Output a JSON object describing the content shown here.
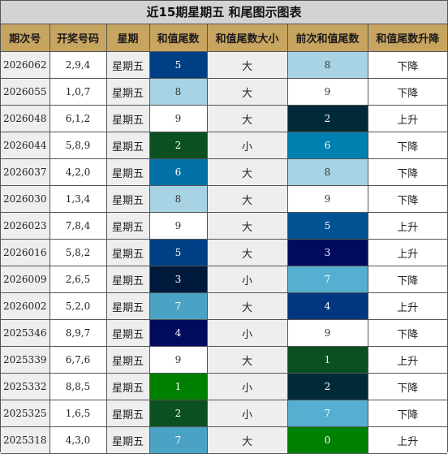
{
  "title": "近15期星期五 和尾图示图表",
  "headers": [
    "期次号",
    "开奖号码",
    "星期",
    "和值尾数",
    "和值尾数大小",
    "前次和值尾数",
    "和值尾数升降"
  ],
  "digit_colors": {
    "0": "#008000",
    "1": "#008000",
    "2": "#0a5020",
    "3": "#001a3d",
    "4": "#020a5e",
    "5": "#003f86",
    "6": "#0371a8",
    "7": "#4aa3c4",
    "8": "#a7d3e4",
    "9": "#ffffff"
  },
  "prev_digit_colors": {
    "0": "#008000",
    "1": "#0a5020",
    "2": "#002a38",
    "3": "#020a5e",
    "4": "#013680",
    "5": "#005293",
    "6": "#0080b0",
    "7": "#56aed0",
    "8": "#a7d3e4",
    "9": "#ffffff"
  },
  "rows": [
    {
      "issue": "2026062",
      "numbers": "2,9,4",
      "weekday": "星期五",
      "sum_tail": "5",
      "size": "大",
      "prev_tail": "8",
      "trend": "下降"
    },
    {
      "issue": "2026055",
      "numbers": "1,0,7",
      "weekday": "星期五",
      "sum_tail": "8",
      "size": "大",
      "prev_tail": "9",
      "trend": "下降"
    },
    {
      "issue": "2026048",
      "numbers": "6,1,2",
      "weekday": "星期五",
      "sum_tail": "9",
      "size": "大",
      "prev_tail": "2",
      "trend": "上升"
    },
    {
      "issue": "2026044",
      "numbers": "5,8,9",
      "weekday": "星期五",
      "sum_tail": "2",
      "size": "小",
      "prev_tail": "6",
      "trend": "下降"
    },
    {
      "issue": "2026037",
      "numbers": "4,2,0",
      "weekday": "星期五",
      "sum_tail": "6",
      "size": "大",
      "prev_tail": "8",
      "trend": "下降"
    },
    {
      "issue": "2026030",
      "numbers": "1,3,4",
      "weekday": "星期五",
      "sum_tail": "8",
      "size": "大",
      "prev_tail": "9",
      "trend": "下降"
    },
    {
      "issue": "2026023",
      "numbers": "7,8,4",
      "weekday": "星期五",
      "sum_tail": "9",
      "size": "大",
      "prev_tail": "5",
      "trend": "上升"
    },
    {
      "issue": "2026016",
      "numbers": "5,8,2",
      "weekday": "星期五",
      "sum_tail": "5",
      "size": "大",
      "prev_tail": "3",
      "trend": "上升"
    },
    {
      "issue": "2026009",
      "numbers": "2,6,5",
      "weekday": "星期五",
      "sum_tail": "3",
      "size": "小",
      "prev_tail": "7",
      "trend": "下降"
    },
    {
      "issue": "2026002",
      "numbers": "5,2,0",
      "weekday": "星期五",
      "sum_tail": "7",
      "size": "大",
      "prev_tail": "4",
      "trend": "上升"
    },
    {
      "issue": "2025346",
      "numbers": "8,9,7",
      "weekday": "星期五",
      "sum_tail": "4",
      "size": "小",
      "prev_tail": "9",
      "trend": "下降"
    },
    {
      "issue": "2025339",
      "numbers": "6,7,6",
      "weekday": "星期五",
      "sum_tail": "9",
      "size": "大",
      "prev_tail": "1",
      "trend": "上升"
    },
    {
      "issue": "2025332",
      "numbers": "8,8,5",
      "weekday": "星期五",
      "sum_tail": "1",
      "size": "小",
      "prev_tail": "2",
      "trend": "下降"
    },
    {
      "issue": "2025325",
      "numbers": "1,6,5",
      "weekday": "星期五",
      "sum_tail": "2",
      "size": "小",
      "prev_tail": "7",
      "trend": "下降"
    },
    {
      "issue": "2025318",
      "numbers": "4,3,0",
      "weekday": "星期五",
      "sum_tail": "7",
      "size": "大",
      "prev_tail": "0",
      "trend": "上升"
    }
  ]
}
